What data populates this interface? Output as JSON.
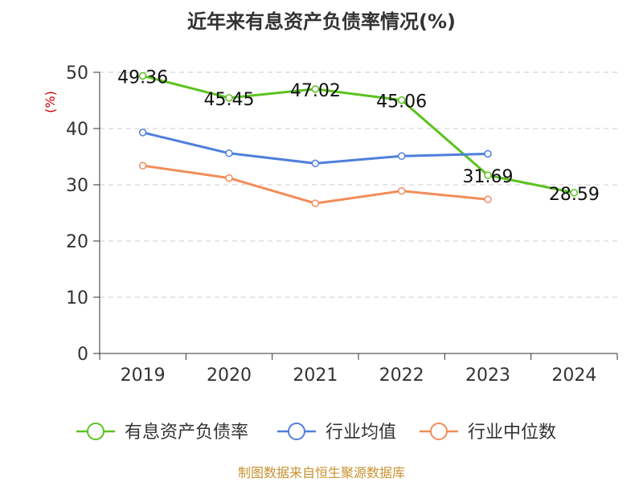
{
  "chart_data": {
    "type": "line",
    "title": "近年来有息资产负债率情况(%)",
    "ylabel": "(%)",
    "categories": [
      "2019",
      "2020",
      "2021",
      "2022",
      "2023",
      "2024"
    ],
    "ylim": [
      0,
      50
    ],
    "yticks": [
      0,
      10,
      20,
      30,
      40,
      50
    ],
    "grid": true,
    "legend_position": "bottom",
    "series": [
      {
        "name": "有息资产负债率",
        "color": "#5cc21f",
        "values": [
          49.36,
          45.45,
          47.02,
          45.06,
          31.69,
          28.59
        ],
        "labels": [
          "49.36",
          "45.45",
          "47.02",
          "45.06",
          "31.69",
          "28.59"
        ]
      },
      {
        "name": "行业均值",
        "color": "#4f7fdb",
        "values": [
          39.3,
          35.6,
          33.8,
          35.1,
          35.5,
          null
        ]
      },
      {
        "name": "行业中位数",
        "color": "#f28c5a",
        "values": [
          33.4,
          31.2,
          26.7,
          28.9,
          27.4,
          null
        ]
      }
    ]
  },
  "source_note": "制图数据来自恒生聚源数据库"
}
